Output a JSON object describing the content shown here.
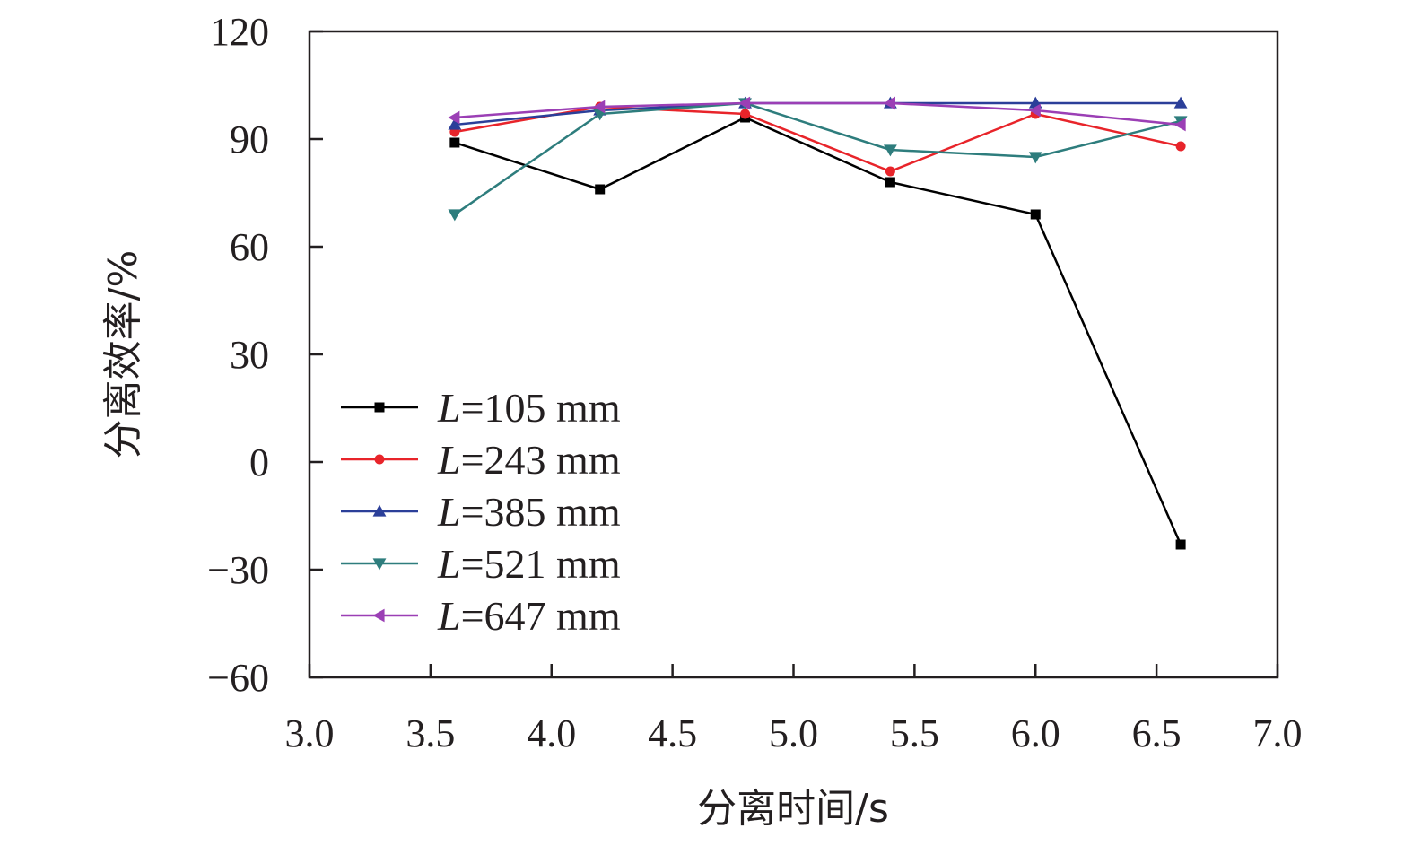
{
  "chart_data": {
    "type": "line",
    "xlabel": "分离时间/s",
    "ylabel": "分离效率/%",
    "xlim": [
      3.0,
      7.0
    ],
    "ylim": [
      -60,
      120
    ],
    "xticks": [
      "3.0",
      "3.5",
      "4.0",
      "4.5",
      "5.0",
      "5.5",
      "6.0",
      "6.5",
      "7.0"
    ],
    "yticks": [
      "−60",
      "−30",
      "0",
      "30",
      "60",
      "90",
      "120"
    ],
    "grid": false,
    "legend_position": "lower-left",
    "legend_prefix": "L",
    "series": [
      {
        "name": "=105 mm",
        "color": "#000000",
        "marker": "square",
        "x": [
          3.6,
          4.2,
          4.8,
          5.4,
          6.0,
          6.6
        ],
        "y": [
          89,
          76,
          96,
          78,
          69,
          -23
        ]
      },
      {
        "name": "=243 mm",
        "color": "#e8242a",
        "marker": "circle",
        "x": [
          3.6,
          4.2,
          4.8,
          5.4,
          6.0,
          6.6
        ],
        "y": [
          92,
          99,
          97,
          81,
          97,
          88
        ]
      },
      {
        "name": "=385 mm",
        "color": "#2b3f99",
        "marker": "triangle-up",
        "x": [
          3.6,
          4.2,
          4.8,
          5.4,
          6.0,
          6.6
        ],
        "y": [
          94,
          98,
          100,
          100,
          100,
          100
        ]
      },
      {
        "name": "=521 mm",
        "color": "#2e7d7d",
        "marker": "triangle-down",
        "x": [
          3.6,
          4.2,
          4.8,
          5.4,
          6.0,
          6.6
        ],
        "y": [
          69,
          97,
          100,
          87,
          85,
          95
        ]
      },
      {
        "name": "=647 mm",
        "color": "#9b3fb5",
        "marker": "triangle-left",
        "x": [
          3.6,
          4.2,
          4.8,
          5.4,
          6.0,
          6.6
        ],
        "y": [
          96,
          99,
          100,
          100,
          98,
          94
        ]
      }
    ]
  }
}
